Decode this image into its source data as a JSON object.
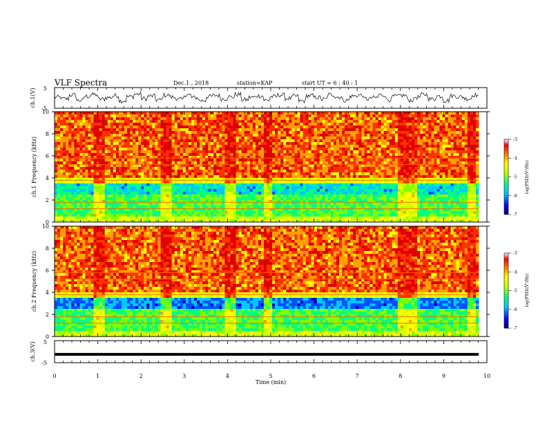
{
  "header": {
    "title": "VLF Spectra",
    "date": "Dec.1 , 2018",
    "station": "station=KAP",
    "start": "start UT = 6 : 40 : 1"
  },
  "colorbar": {
    "label": "log(PSD)(V²/Hz)",
    "ticks": [
      "-3",
      "-4",
      "-5",
      "-6",
      "-7"
    ],
    "colors": [
      "#000080",
      "#0000ff",
      "#00c8ff",
      "#00ff80",
      "#c8ff00",
      "#ffff00",
      "#ff8000",
      "#ff0000",
      "#ffffff"
    ]
  },
  "chart_data": [
    {
      "type": "line",
      "ylabel": "ch.1(V)",
      "ylim": [
        -5,
        5
      ],
      "yticks": [
        "5",
        "-5"
      ],
      "xlim": [
        0,
        10
      ],
      "series": [
        {
          "values": [
            0.3,
            -0.5,
            1.4,
            -1.2,
            0.8,
            1.6,
            -0.6,
            0.2,
            1.1,
            -1.4,
            0.6,
            1.8,
            -0.3,
            0.9,
            -1.0,
            1.3,
            0.4,
            -0.8,
            1.5,
            0.1,
            -1.3,
            0.7,
            1.2,
            -0.4,
            0.5,
            1.7,
            -0.9,
            0.3,
            1.0,
            -1.1,
            0.6,
            1.4,
            -0.2,
            0.8,
            -1.5,
            1.1,
            0.2,
            -0.7,
            1.6,
            0.4,
            -1.2,
            0.9,
            1.3,
            -0.5,
            0.1,
            1.5,
            -0.8,
            0.7,
            1.2,
            -1.0,
            0.3,
            1.6,
            -0.6,
            0.9,
            -1.3,
            1.0,
            0.5,
            -0.4,
            1.4,
            0.2
          ]
        }
      ]
    },
    {
      "type": "heatmap",
      "ylabel": "ch.1 Frequency (kHz)",
      "ylim": [
        0,
        10
      ],
      "yticks": [
        "0",
        "2",
        "4",
        "6",
        "8",
        "10"
      ],
      "xlim": [
        0,
        10
      ],
      "zlabel": "log(PSD)(V²/Hz)",
      "zlim": [
        -7,
        -3
      ]
    },
    {
      "type": "heatmap",
      "ylabel": "ch.2 Frequency (kHz)",
      "ylim": [
        0,
        10
      ],
      "yticks": [
        "0",
        "2",
        "4",
        "6",
        "8",
        "10"
      ],
      "xlim": [
        0,
        10
      ],
      "zlabel": "log(PSD)(V²/Hz)",
      "zlim": [
        -7,
        -3
      ]
    },
    {
      "type": "line",
      "ylabel": "ch.3(V)",
      "ylim": [
        -5,
        5
      ],
      "yticks": [
        "5",
        "-5"
      ],
      "xlim": [
        0,
        10
      ],
      "series": [
        {
          "values": [
            -1.2,
            -1.2
          ]
        }
      ]
    }
  ],
  "xaxis": {
    "label": "Time (min)",
    "ticks": [
      "0",
      "1",
      "2",
      "3",
      "4",
      "5",
      "6",
      "7",
      "8",
      "9",
      "10"
    ]
  }
}
